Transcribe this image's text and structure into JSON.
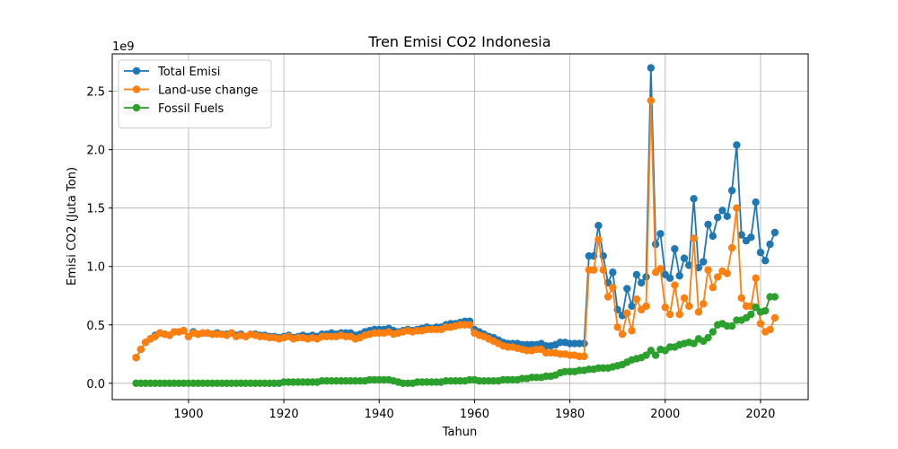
{
  "chart_data": {
    "type": "line",
    "title": "Tren Emisi CO2 Indonesia",
    "xlabel": "Tahun",
    "ylabel": "Emisi CO2 (Juta Ton)",
    "y_offset_text": "1e9",
    "xlim": [
      1884,
      2030
    ],
    "ylim": [
      -0.14,
      2.82
    ],
    "y_scale_note": "values in units of 1e9",
    "xticks": [
      1900,
      1920,
      1940,
      1960,
      1980,
      2000,
      2020
    ],
    "yticks": [
      0.0,
      0.5,
      1.0,
      1.5,
      2.0,
      2.5
    ],
    "xtick_labels": [
      "1900",
      "1920",
      "1940",
      "1960",
      "1980",
      "2000",
      "2020"
    ],
    "ytick_labels": [
      "0.0",
      "0.5",
      "1.0",
      "1.5",
      "2.0",
      "2.5"
    ],
    "grid": true,
    "legend_position": "top-left",
    "x": [
      1889,
      1890,
      1891,
      1892,
      1893,
      1894,
      1895,
      1896,
      1897,
      1898,
      1899,
      1900,
      1901,
      1902,
      1903,
      1904,
      1905,
      1906,
      1907,
      1908,
      1909,
      1910,
      1911,
      1912,
      1913,
      1914,
      1915,
      1916,
      1917,
      1918,
      1919,
      1920,
      1921,
      1922,
      1923,
      1924,
      1925,
      1926,
      1927,
      1928,
      1929,
      1930,
      1931,
      1932,
      1933,
      1934,
      1935,
      1936,
      1937,
      1938,
      1939,
      1940,
      1941,
      1942,
      1943,
      1944,
      1945,
      1946,
      1947,
      1948,
      1949,
      1950,
      1951,
      1952,
      1953,
      1954,
      1955,
      1956,
      1957,
      1958,
      1959,
      1960,
      1961,
      1962,
      1963,
      1964,
      1965,
      1966,
      1967,
      1968,
      1969,
      1970,
      1971,
      1972,
      1973,
      1974,
      1975,
      1976,
      1977,
      1978,
      1979,
      1980,
      1981,
      1982,
      1983,
      1984,
      1985,
      1986,
      1987,
      1988,
      1989,
      1990,
      1991,
      1992,
      1993,
      1994,
      1995,
      1996,
      1997,
      1998,
      1999,
      2000,
      2001,
      2002,
      2003,
      2004,
      2005,
      2006,
      2007,
      2008,
      2009,
      2010,
      2011,
      2012,
      2013,
      2014,
      2015,
      2016,
      2017,
      2018,
      2019,
      2020,
      2021,
      2022,
      2023
    ],
    "series": [
      {
        "name": "Total Emisi",
        "color": "#1f77b4",
        "values": [
          0.22,
          0.29,
          0.35,
          0.38,
          0.41,
          0.43,
          0.42,
          0.41,
          0.44,
          0.44,
          0.45,
          0.4,
          0.44,
          0.42,
          0.43,
          0.43,
          0.42,
          0.43,
          0.42,
          0.42,
          0.43,
          0.41,
          0.42,
          0.4,
          0.42,
          0.42,
          0.41,
          0.41,
          0.4,
          0.4,
          0.39,
          0.4,
          0.41,
          0.39,
          0.4,
          0.41,
          0.4,
          0.41,
          0.4,
          0.42,
          0.42,
          0.43,
          0.42,
          0.43,
          0.43,
          0.43,
          0.41,
          0.42,
          0.44,
          0.45,
          0.46,
          0.46,
          0.46,
          0.47,
          0.45,
          0.44,
          0.45,
          0.46,
          0.45,
          0.46,
          0.47,
          0.48,
          0.47,
          0.48,
          0.48,
          0.5,
          0.51,
          0.51,
          0.52,
          0.53,
          0.53,
          0.46,
          0.44,
          0.42,
          0.4,
          0.39,
          0.37,
          0.35,
          0.34,
          0.34,
          0.34,
          0.33,
          0.33,
          0.33,
          0.33,
          0.34,
          0.32,
          0.32,
          0.33,
          0.35,
          0.35,
          0.34,
          0.34,
          0.34,
          0.34,
          1.09,
          1.09,
          1.35,
          1.09,
          0.86,
          0.95,
          0.63,
          0.58,
          0.81,
          0.66,
          0.93,
          0.86,
          0.91,
          2.7,
          1.19,
          1.28,
          0.93,
          0.9,
          1.15,
          0.92,
          1.07,
          1.01,
          1.58,
          0.99,
          1.04,
          1.36,
          1.26,
          1.42,
          1.48,
          1.43,
          1.65,
          2.04,
          1.27,
          1.22,
          1.25,
          1.55,
          1.12,
          1.05,
          1.19,
          1.29
        ]
      },
      {
        "name": "Land-use change",
        "color": "#ff7f0e",
        "values": [
          0.22,
          0.29,
          0.35,
          0.38,
          0.4,
          0.43,
          0.42,
          0.41,
          0.44,
          0.44,
          0.45,
          0.4,
          0.43,
          0.42,
          0.43,
          0.43,
          0.42,
          0.42,
          0.42,
          0.41,
          0.43,
          0.4,
          0.41,
          0.4,
          0.42,
          0.41,
          0.4,
          0.4,
          0.39,
          0.39,
          0.38,
          0.39,
          0.4,
          0.38,
          0.39,
          0.39,
          0.38,
          0.39,
          0.38,
          0.4,
          0.4,
          0.4,
          0.4,
          0.41,
          0.4,
          0.4,
          0.38,
          0.39,
          0.41,
          0.42,
          0.43,
          0.43,
          0.43,
          0.44,
          0.42,
          0.43,
          0.44,
          0.45,
          0.44,
          0.45,
          0.45,
          0.46,
          0.46,
          0.46,
          0.46,
          0.48,
          0.48,
          0.49,
          0.5,
          0.5,
          0.5,
          0.43,
          0.41,
          0.4,
          0.38,
          0.36,
          0.34,
          0.32,
          0.31,
          0.31,
          0.3,
          0.29,
          0.28,
          0.28,
          0.29,
          0.29,
          0.26,
          0.26,
          0.26,
          0.25,
          0.25,
          0.24,
          0.24,
          0.23,
          0.23,
          0.97,
          0.97,
          1.23,
          0.97,
          0.74,
          0.82,
          0.48,
          0.42,
          0.6,
          0.45,
          0.72,
          0.63,
          0.66,
          2.42,
          0.95,
          0.98,
          0.65,
          0.59,
          0.84,
          0.59,
          0.73,
          0.66,
          1.24,
          0.61,
          0.68,
          0.97,
          0.82,
          0.91,
          0.96,
          0.94,
          1.16,
          1.5,
          0.73,
          0.66,
          0.66,
          0.9,
          0.51,
          0.44,
          0.46,
          0.56
        ]
      },
      {
        "name": "Fossil Fuels",
        "color": "#2ca02c",
        "values": [
          0.0,
          0.0,
          0.0,
          0.0,
          0.0,
          0.0,
          0.0,
          0.0,
          0.0,
          0.0,
          0.0,
          0.0,
          0.0,
          0.0,
          0.0,
          0.0,
          0.0,
          0.0,
          0.0,
          0.0,
          0.0,
          0.0,
          0.0,
          0.0,
          0.0,
          0.0,
          0.0,
          0.0,
          0.0,
          0.0,
          0.0,
          0.01,
          0.01,
          0.01,
          0.01,
          0.01,
          0.01,
          0.01,
          0.01,
          0.02,
          0.02,
          0.02,
          0.02,
          0.02,
          0.02,
          0.02,
          0.02,
          0.02,
          0.02,
          0.03,
          0.03,
          0.03,
          0.03,
          0.03,
          0.02,
          0.01,
          0.0,
          0.0,
          0.0,
          0.01,
          0.01,
          0.01,
          0.01,
          0.01,
          0.01,
          0.02,
          0.02,
          0.02,
          0.02,
          0.02,
          0.03,
          0.03,
          0.02,
          0.02,
          0.02,
          0.02,
          0.02,
          0.03,
          0.03,
          0.03,
          0.03,
          0.04,
          0.04,
          0.05,
          0.05,
          0.05,
          0.06,
          0.06,
          0.07,
          0.09,
          0.1,
          0.1,
          0.1,
          0.11,
          0.11,
          0.12,
          0.12,
          0.13,
          0.13,
          0.13,
          0.14,
          0.15,
          0.16,
          0.18,
          0.2,
          0.21,
          0.22,
          0.24,
          0.28,
          0.24,
          0.29,
          0.28,
          0.31,
          0.31,
          0.33,
          0.34,
          0.35,
          0.34,
          0.38,
          0.36,
          0.39,
          0.44,
          0.5,
          0.51,
          0.49,
          0.49,
          0.54,
          0.54,
          0.56,
          0.59,
          0.65,
          0.61,
          0.62,
          0.74,
          0.74
        ]
      }
    ]
  }
}
